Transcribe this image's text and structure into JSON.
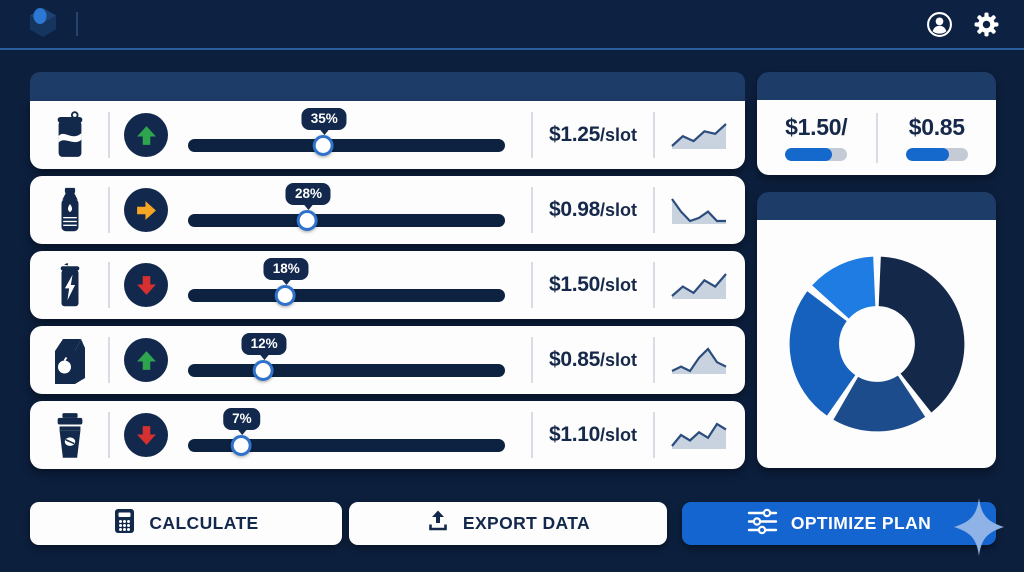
{
  "topbar": {
    "logo": "app-logo",
    "profile_icon": "user-profile",
    "settings_icon": "gear"
  },
  "rows": [
    {
      "product": "soda-can",
      "trend": "up",
      "percent": "35%",
      "handle_pct": 43,
      "price": "$1.25",
      "unit": "/slot",
      "spark": [
        2,
        6,
        4,
        8,
        7,
        11
      ]
    },
    {
      "product": "water-bottle",
      "trend": "flat",
      "percent": "28%",
      "handle_pct": 38,
      "price": "$0.98",
      "unit": "/slot",
      "spark": [
        10,
        6,
        3,
        4,
        6,
        3,
        3
      ]
    },
    {
      "product": "energy-drink",
      "trend": "down",
      "percent": "18%",
      "handle_pct": 31,
      "price": "$1.50",
      "unit": "/slot",
      "spark": [
        2,
        5,
        3,
        7,
        5,
        9
      ]
    },
    {
      "product": "juice-carton",
      "trend": "up",
      "percent": "12%",
      "handle_pct": 24,
      "price": "$0.85",
      "unit": "/slot",
      "spark": [
        3,
        4,
        3,
        6,
        8,
        5,
        4
      ]
    },
    {
      "product": "coffee-cup",
      "trend": "down",
      "percent": "7%",
      "handle_pct": 17,
      "price": "$1.10",
      "unit": "/slot",
      "spark": [
        2,
        6,
        4,
        7,
        5,
        10,
        8
      ]
    }
  ],
  "summary": {
    "left": {
      "price": "$1.50/",
      "fill_pct": 76
    },
    "right": {
      "price": "$0.85",
      "fill_pct": 69
    }
  },
  "chart_data": {
    "type": "pie",
    "donut": true,
    "values": [
      40,
      19,
      27,
      14
    ],
    "colors": [
      "#14294a",
      "#1d4c8c",
      "#1561bd",
      "#1e7ce2"
    ],
    "labels": [],
    "start": "top",
    "direction": "clockwise",
    "gap_pct": 1.4,
    "inner_radius_ratio": 0.43
  },
  "actions": [
    {
      "label": "CALCULATE",
      "icon": "calculator"
    },
    {
      "label": "EXPORT DATA",
      "icon": "upload"
    },
    {
      "label": "OPTIMIZE PLAN",
      "icon": "sliders",
      "primary": true
    }
  ],
  "colors": {
    "background": "#0c1f3d",
    "topbar": "#0d2142",
    "band": "#1e3c68",
    "navy": "#12294d",
    "slider_fill": "#1467c8",
    "slider_track": "#0d2240",
    "trend_up": "#2ea44f",
    "trend_flat": "#f5a623",
    "trend_down": "#d63031",
    "spark_line": "#2b4d7e",
    "spark_fill": "#c9d2df",
    "primary_button": "#1565d0",
    "sparkle": "#8fb3e6"
  }
}
